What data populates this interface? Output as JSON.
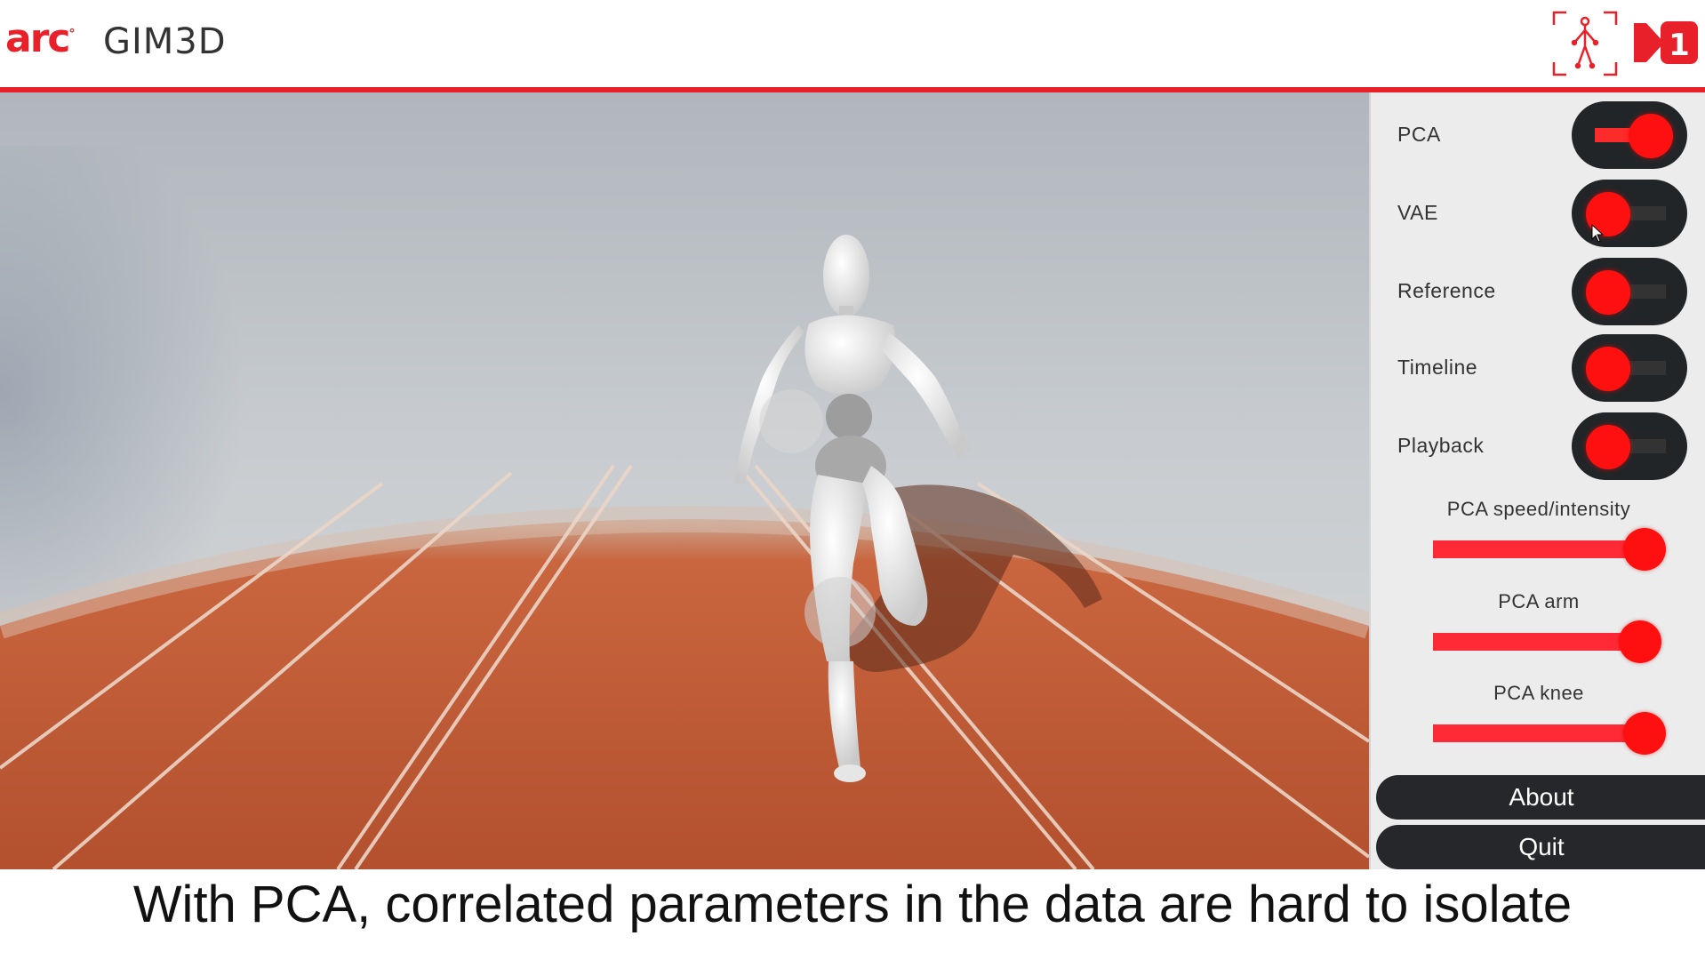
{
  "header": {
    "logo_text": "arc",
    "logo_mark": "°",
    "app_title": "GIM3D",
    "icons": [
      "skeleton-tracking-icon",
      "n1-logo-icon"
    ]
  },
  "viewport": {
    "scene": "3d-running-track-mannequin"
  },
  "panel": {
    "toggles": [
      {
        "label": "PCA",
        "state": "on"
      },
      {
        "label": "VAE",
        "state": "off"
      },
      {
        "label": "Reference",
        "state": "off"
      },
      {
        "label": "Timeline",
        "state": "off"
      },
      {
        "label": "Playback",
        "state": "off"
      }
    ],
    "sliders": [
      {
        "label": "PCA speed/intensity",
        "value": 1.0
      },
      {
        "label": "PCA arm",
        "value": 0.98
      },
      {
        "label": "PCA knee",
        "value": 1.0
      }
    ],
    "about_label": "About",
    "quit_label": "Quit"
  },
  "caption": "With PCA, correlated parameters in the data are hard to isolate",
  "colors": {
    "accent": "#e8202a",
    "knob": "#ff1010",
    "toggle_bg": "#222528",
    "panel_bg": "#ececec"
  }
}
